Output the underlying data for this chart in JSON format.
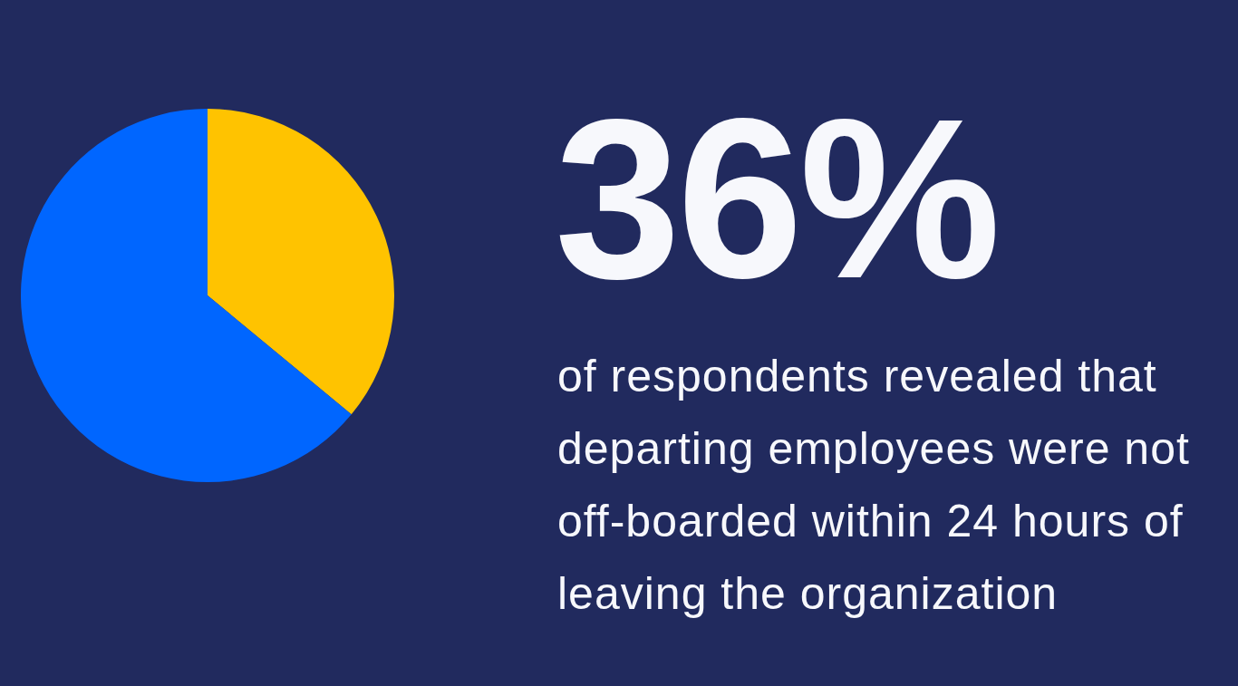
{
  "chart_data": {
    "type": "pie",
    "title": "36%",
    "subtitle": "of respondents revealed that departing employees were not off-boarded within 24 hours of leaving the organization",
    "categories": [
      null,
      null
    ],
    "values": [
      36,
      64
    ],
    "colors": [
      "#ffc300",
      "#0066ff"
    ],
    "legend": false
  }
}
